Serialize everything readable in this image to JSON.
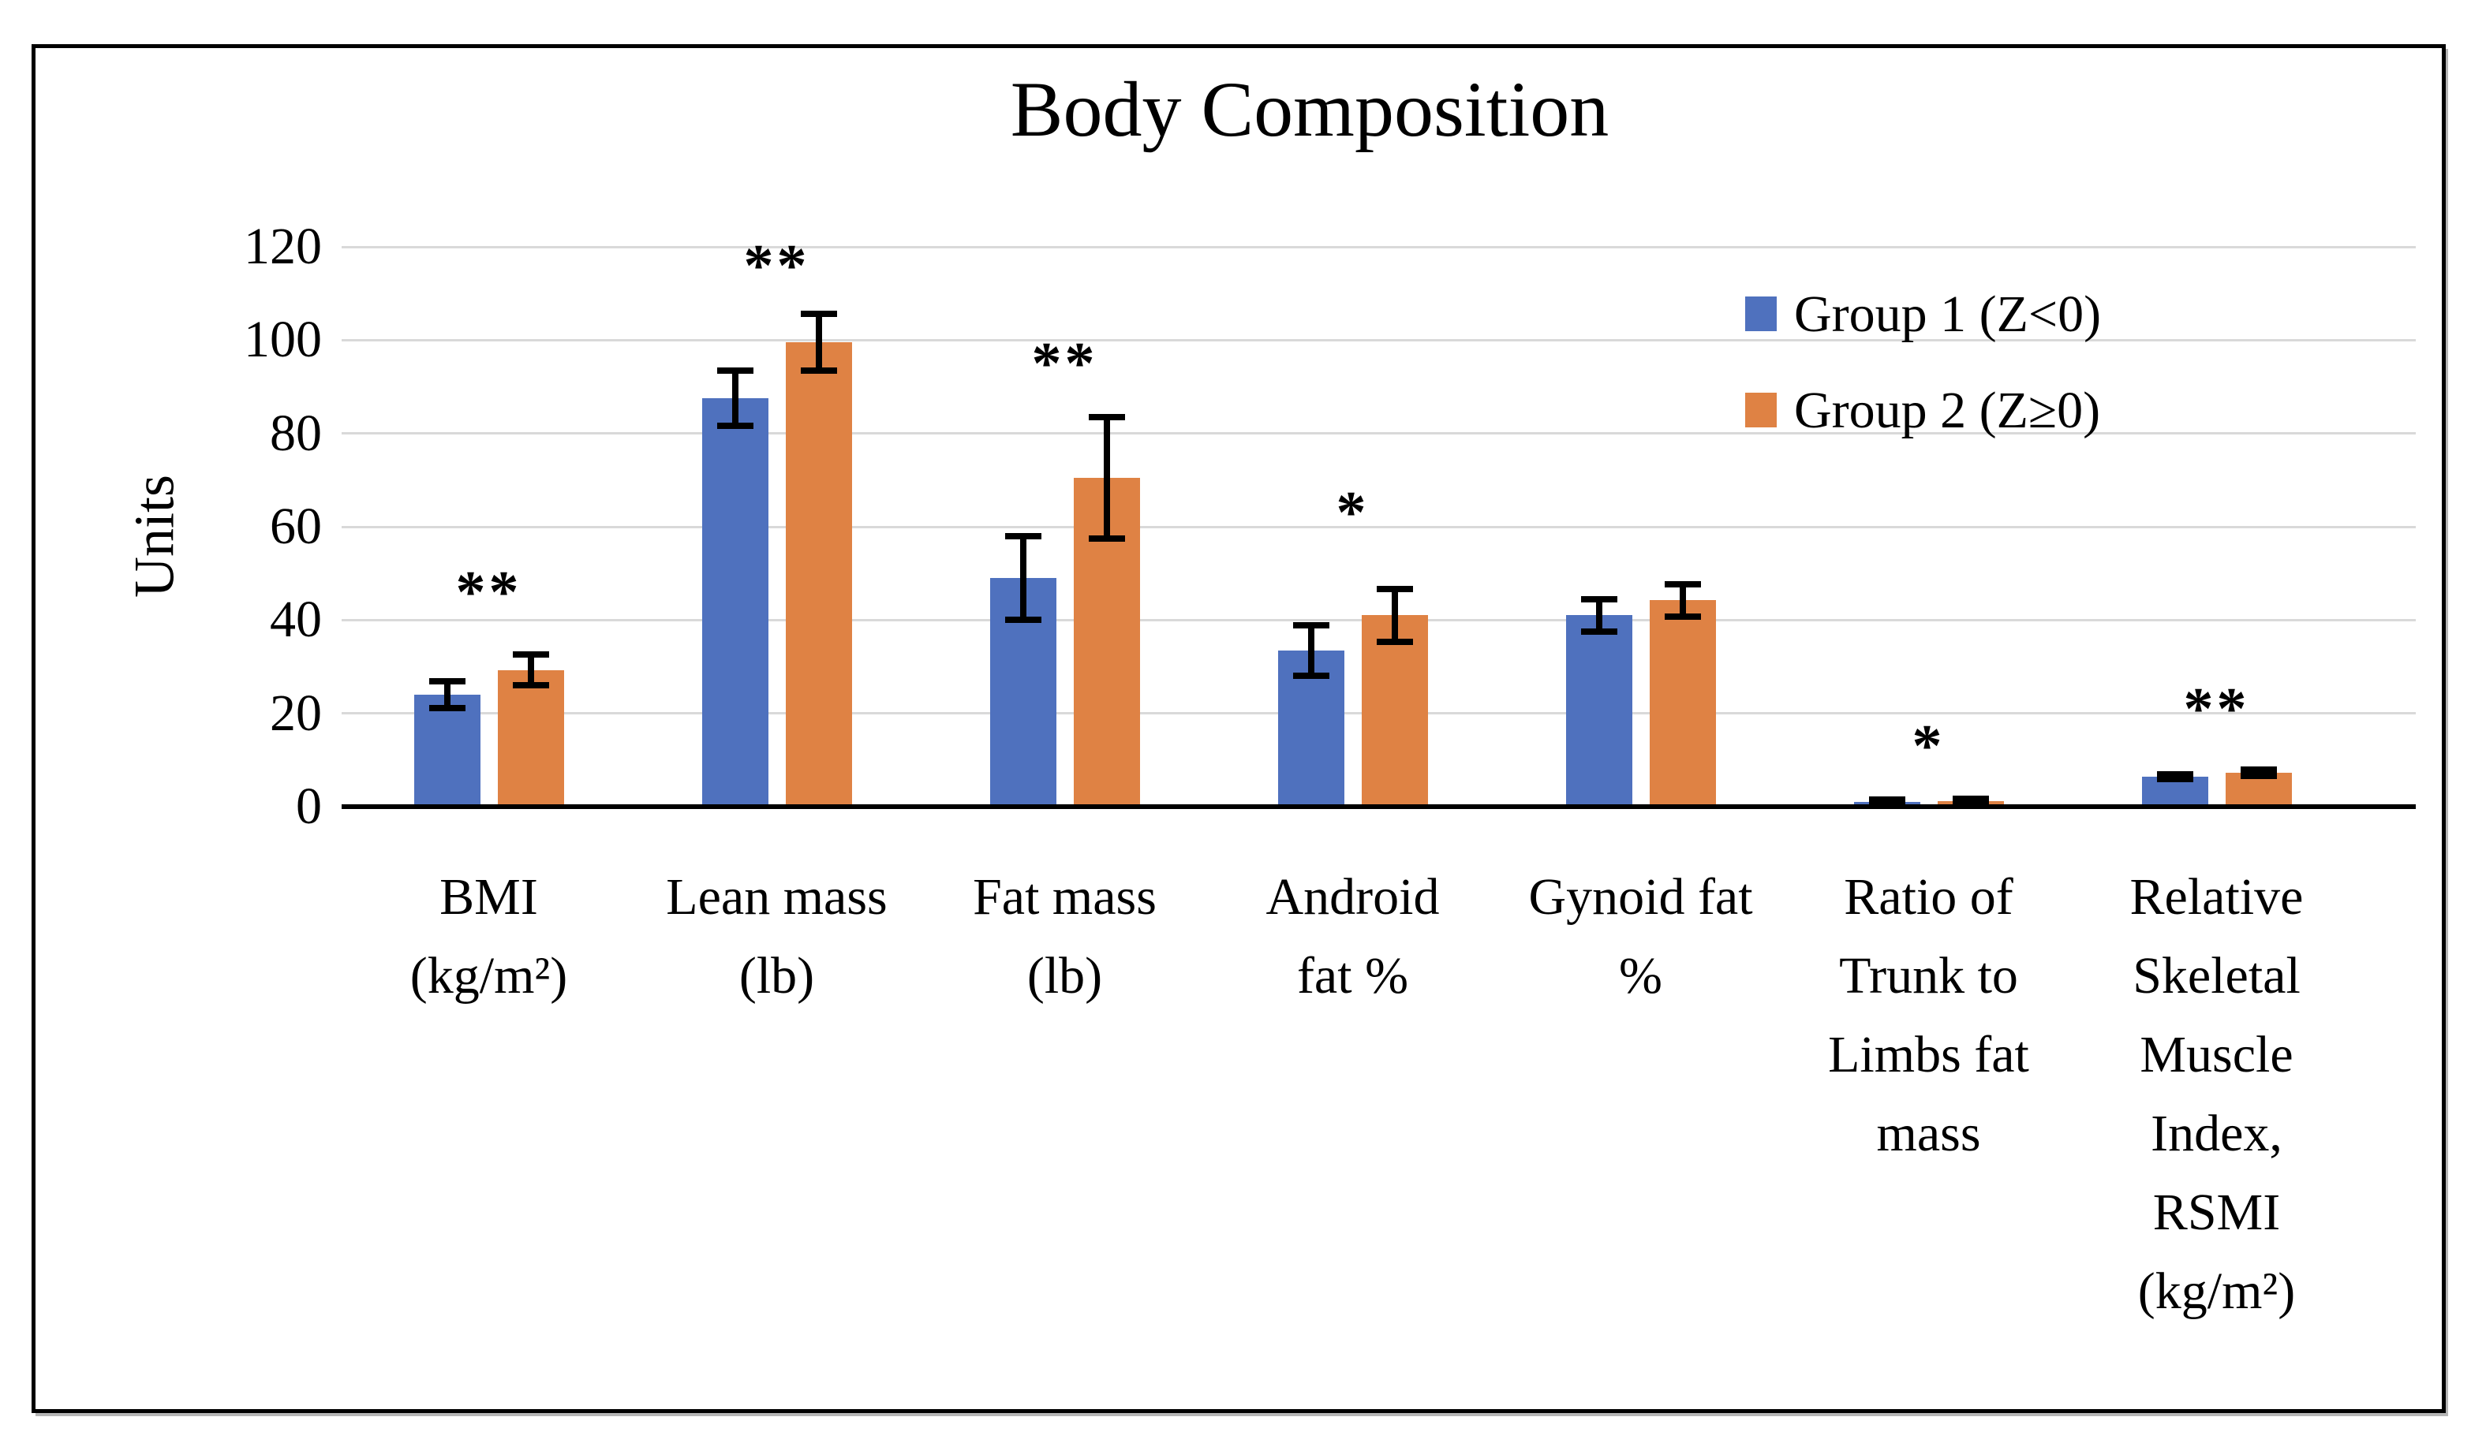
{
  "chart_data": {
    "type": "bar",
    "title": "Body Composition",
    "ylabel": "Units",
    "xlabel": "",
    "ylim": [
      0,
      120
    ],
    "yticks": [
      0,
      20,
      40,
      60,
      80,
      100,
      120
    ],
    "grid": "horizontal-gridlines-on",
    "legend_position": "top-right-inside",
    "categories": [
      "BMI (kg/m²)",
      "Lean mass (lb)",
      "Fat mass (lb)",
      "Android fat %",
      "Gynoid fat %",
      "Ratio of Trunk to Limbs fat mass",
      "Relative Skeletal Muscle Index, RSMI (kg/m²)"
    ],
    "category_label_lines": [
      [
        "BMI",
        "(kg/m²)"
      ],
      [
        "Lean mass",
        "(lb)"
      ],
      [
        "Fat mass",
        "(lb)"
      ],
      [
        "Android",
        "fat %"
      ],
      [
        "Gynoid fat",
        "%"
      ],
      [
        "Ratio of",
        "Trunk to",
        "Limbs fat",
        "mass"
      ],
      [
        "Relative",
        "Skeletal",
        "Muscle",
        "Index,",
        "RSMI",
        "(kg/m²)"
      ]
    ],
    "series": [
      {
        "name": "Group 1 (Z<0)",
        "color": "#4F71BE",
        "values": [
          24,
          87.5,
          49,
          33.5,
          41,
          1,
          6.5
        ],
        "errors": [
          2.8,
          5.9,
          9,
          5.4,
          3.5,
          0.6,
          0.5
        ]
      },
      {
        "name": "Group 2 (Z≥0)",
        "color": "#DF8244",
        "values": [
          29.3,
          99.5,
          70.5,
          41,
          44.2,
          1.1,
          7.3
        ],
        "errors": [
          3.3,
          6.1,
          13,
          5.6,
          3.5,
          0.6,
          0.7
        ]
      }
    ],
    "annotations": [
      {
        "category_index": 0,
        "text": "**",
        "y": 48
      },
      {
        "category_index": 1,
        "text": "**",
        "y": 118
      },
      {
        "category_index": 2,
        "text": "**",
        "y": 97
      },
      {
        "category_index": 3,
        "text": "*",
        "y": 65
      },
      {
        "category_index": 5,
        "text": "*",
        "y": 15
      },
      {
        "category_index": 6,
        "text": "**",
        "y": 23
      }
    ],
    "colors": {
      "series1": "#4F71BE",
      "series2": "#DF8244",
      "gridline": "#D9D9D9",
      "axis": "#000000",
      "text": "#000000",
      "background": "#FFFFFF",
      "figure_border": "#000000"
    }
  }
}
